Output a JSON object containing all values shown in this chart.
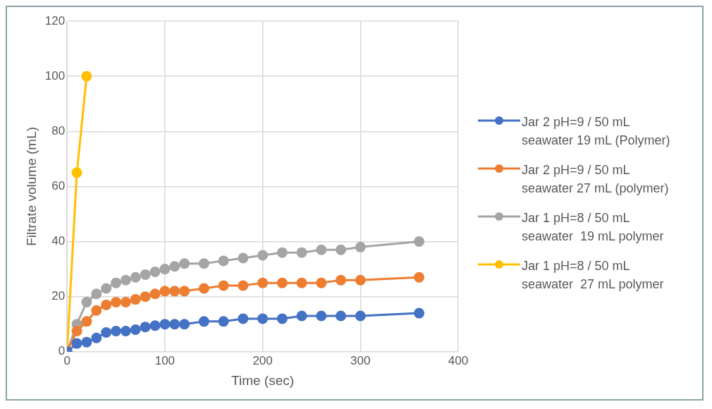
{
  "chart_data": {
    "type": "line",
    "xlabel": "Time (sec)",
    "ylabel": "Filtrate volume (mL)",
    "xlim": [
      0,
      400
    ],
    "xticks": [
      0,
      100,
      200,
      300,
      400
    ],
    "ylim": [
      0,
      120
    ],
    "yticks": [
      0,
      20,
      40,
      60,
      80,
      100,
      120
    ],
    "grid": true,
    "legend": "right",
    "marker": "circle",
    "line_style": "solid",
    "series": [
      {
        "name": "Jar 2 pH=9 / 50 mL seawater 19 mL (Polymer)",
        "color": "#4472c4",
        "x": [
          0,
          10,
          20,
          30,
          40,
          50,
          60,
          70,
          80,
          90,
          100,
          110,
          120,
          140,
          160,
          180,
          200,
          220,
          240,
          260,
          280,
          300,
          360
        ],
        "values": [
          0,
          3,
          3.5,
          5,
          7,
          7.5,
          7.5,
          8,
          9,
          9.5,
          10,
          10,
          10,
          11,
          11,
          12,
          12,
          12,
          13,
          13,
          13,
          13,
          14
        ]
      },
      {
        "name": "Jar 2 pH=9 / 50 mL seawater 27 mL (polymer)",
        "color": "#ed7d31",
        "x": [
          0,
          10,
          20,
          30,
          40,
          50,
          60,
          70,
          80,
          90,
          100,
          110,
          120,
          140,
          160,
          180,
          200,
          220,
          240,
          260,
          280,
          300,
          360
        ],
        "values": [
          0,
          7.5,
          11,
          15,
          17,
          18,
          18,
          19,
          20,
          21,
          22,
          22,
          22,
          23,
          24,
          24,
          25,
          25,
          25,
          25,
          26,
          26,
          27
        ]
      },
      {
        "name": "Jar 1 pH=8 / 50 mL seawater  19 mL polymer",
        "color": "#a5a5a5",
        "x": [
          0,
          10,
          20,
          30,
          40,
          50,
          60,
          70,
          80,
          90,
          100,
          110,
          120,
          140,
          160,
          180,
          200,
          220,
          240,
          260,
          280,
          300,
          360
        ],
        "values": [
          0,
          10,
          18,
          21,
          23,
          25,
          26,
          27,
          28,
          29,
          30,
          31,
          32,
          32,
          33,
          34,
          35,
          36,
          36,
          37,
          37,
          38,
          40
        ]
      },
      {
        "name": "Jar 1 pH=8 / 50 mL seawater  27 mL polymer",
        "color": "#ffc000",
        "x": [
          0,
          10,
          20
        ],
        "values": [
          0,
          65,
          100
        ]
      }
    ]
  }
}
